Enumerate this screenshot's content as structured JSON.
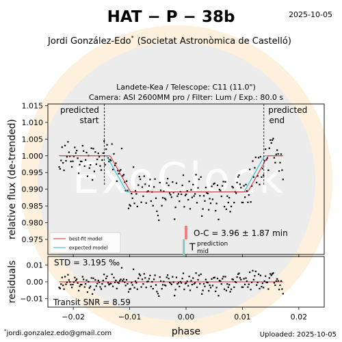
{
  "header": {
    "title": "HAT − P − 38b",
    "date": "2025-10-05",
    "observer": "Jordi González-Edo",
    "observer_mark": "*",
    "observer_affiliation": "(Societat Astronòmica de Castelló)"
  },
  "chart_info": {
    "line1": "Landete-Kea / Telescope: C11 (11.0\")",
    "line2": "Camera: ASI 2600MM pro / Filter: Lum / Exp.: 80.0 s"
  },
  "footer": {
    "email_mark": "*",
    "email": "jordi.gonzalez.edo@gmail.com",
    "uploaded": "Uploaded: 2025-10-05"
  },
  "watermark": {
    "text": "ExoClock",
    "colors": {
      "outer": "#fdf0dc",
      "inner": "#ececec"
    }
  },
  "chart_data": [
    {
      "type": "scatter",
      "panel": "light-curve",
      "ylabel": "relative flux (de-trended)",
      "xlim": [
        -0.0245,
        0.0245
      ],
      "ylim": [
        0.9705,
        1.0155
      ],
      "yticks": [
        "0.975",
        "0.980",
        "0.985",
        "0.990",
        "0.995",
        "1.000",
        "1.005",
        "1.010",
        "1.015"
      ],
      "grid": false,
      "legend_position": "bottom-left",
      "annotations": {
        "predicted_start": {
          "x": -0.0145,
          "label_line1": "predicted",
          "label_line2": "start"
        },
        "predicted_end": {
          "x": 0.0138,
          "label_line1": "predicted",
          "label_line2": "end"
        },
        "oc_text": "O-C = 3.96 ± 1.87 min",
        "oc_bar_x": 0.0,
        "oc_bar_color": "#f08080",
        "tmid_label": "T",
        "tmid_superscript": "prediction",
        "tmid_subscript": "mid",
        "tmid_bar_x": -0.0004,
        "tmid_bar_color": "#7fc9c1"
      },
      "transit_model": {
        "depth": 0.0108,
        "baseline": 1.0,
        "t1": -0.0141,
        "t2": -0.0105,
        "t3": 0.0103,
        "t4": 0.0139,
        "shift": 0.00065
      },
      "series": [
        {
          "name": "best-fit model",
          "color": "#d62728"
        },
        {
          "name": "expected model",
          "color": "#17becf"
        }
      ],
      "data_seed": 38,
      "n_points": 230,
      "noise": 0.0032,
      "x_range": [
        -0.0225,
        0.0172
      ]
    },
    {
      "type": "scatter",
      "panel": "residuals",
      "ylabel": "residuals",
      "xlabel": "phase",
      "xlim": [
        -0.0245,
        0.0245
      ],
      "ylim": [
        -0.015,
        0.015
      ],
      "yticks": [
        "−0.01",
        "0.00",
        "0.01"
      ],
      "xticks": [
        "−0.02",
        "−0.01",
        "0.00",
        "0.01",
        "0.02"
      ],
      "std_text": "STD = 3.195 ‰",
      "snr_text": "Transit SNR = 8.59",
      "noise": 0.0032,
      "zero_line_color": "#d62728"
    }
  ]
}
